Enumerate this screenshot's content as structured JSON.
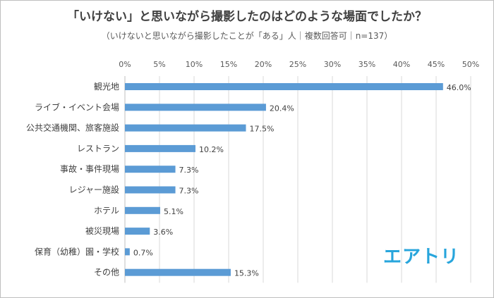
{
  "chart_data": {
    "type": "bar",
    "orientation": "horizontal",
    "title": "「いけない」と思いながら撮影したのはどのような場面でしたか？",
    "subtitle": "（いけないと思いながら撮影したことが「ある」人｜複数回答可｜n=137）",
    "categories": [
      "観光地",
      "ライブ・イベント会場",
      "公共交通機関、旅客施設",
      "レストラン",
      "事故・事件現場",
      "レジャー施設",
      "ホテル",
      "被災現場",
      "保育（幼稚）園・学校",
      "その他"
    ],
    "values": [
      46.0,
      20.4,
      17.5,
      10.2,
      7.3,
      7.3,
      5.1,
      3.6,
      0.7,
      15.3
    ],
    "value_labels": [
      "46.0%",
      "20.4%",
      "17.5%",
      "10.2%",
      "7.3%",
      "7.3%",
      "5.1%",
      "3.6%",
      "0.7%",
      "15.3%"
    ],
    "x_ticks": [
      "0%",
      "5%",
      "10%",
      "15%",
      "20%",
      "25%",
      "30%",
      "35%",
      "40%",
      "45%",
      "50%"
    ],
    "xlim": [
      0,
      50
    ],
    "grid": true,
    "axis_position": "top"
  },
  "colors": {
    "bar": "#5b9bd5",
    "grid": "#d9d9d9",
    "logo": "#27a5dc"
  },
  "logo": {
    "text": "エアトリ"
  }
}
